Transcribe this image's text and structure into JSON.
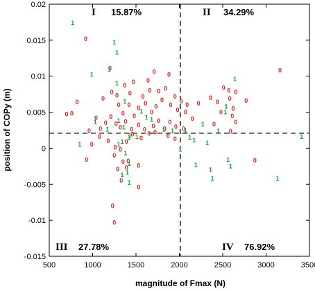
{
  "chart_data": {
    "type": "scatter",
    "xlabel": "magnitude of Fmax (N)",
    "ylabel": "position of COPy (m)",
    "xlim": [
      500,
      3500
    ],
    "ylim": [
      -0.015,
      0.02
    ],
    "x_ticks": [
      "500",
      "1000",
      "1500",
      "2000",
      "2500",
      "3000",
      "3500"
    ],
    "y_ticks": [
      "-0.015",
      "-0.01",
      "-0.005",
      "0",
      "0.005",
      "0.01",
      "0.015",
      "0.02"
    ],
    "grid": false,
    "divider_lines": {
      "x": 2010,
      "y": 0.0021,
      "style": "dashed"
    },
    "quadrants": [
      {
        "roman": "I",
        "percent": "15.87%",
        "position": "top-left"
      },
      {
        "roman": "II",
        "percent": "34.29%",
        "position": "top-right"
      },
      {
        "roman": "III",
        "percent": "27.78%",
        "position": "bottom-left"
      },
      {
        "roman": "IV",
        "percent": "76.92%",
        "position": "bottom-right"
      }
    ],
    "series": [
      {
        "marker": "0",
        "color": "#e02020",
        "points": [
          [
            920,
            0.0152
          ],
          [
            1200,
            0.0111
          ],
          [
            1470,
            0.0092
          ],
          [
            1640,
            0.0094
          ],
          [
            1710,
            0.0106
          ],
          [
            1880,
            0.0102
          ],
          [
            1370,
            0.0087
          ],
          [
            1220,
            0.0078
          ],
          [
            1120,
            0.0069
          ],
          [
            1280,
            0.0073
          ],
          [
            1430,
            0.0076
          ],
          [
            1580,
            0.0072
          ],
          [
            1660,
            0.008
          ],
          [
            1760,
            0.0079
          ],
          [
            1840,
            0.0083
          ],
          [
            1950,
            0.0072
          ],
          [
            2020,
            0.0065
          ],
          [
            2070,
            0.005
          ],
          [
            1300,
            0.006
          ],
          [
            1350,
            0.0048
          ],
          [
            1420,
            0.006
          ],
          [
            1480,
            0.0045
          ],
          [
            1530,
            0.0056
          ],
          [
            1610,
            0.0062
          ],
          [
            1680,
            0.005
          ],
          [
            1730,
            0.0058
          ],
          [
            1800,
            0.0067
          ],
          [
            1900,
            0.006
          ],
          [
            1980,
            0.0053
          ],
          [
            820,
            0.0064
          ],
          [
            700,
            0.0047
          ],
          [
            760,
            0.0048
          ],
          [
            1040,
            0.0042
          ],
          [
            1150,
            0.0035
          ],
          [
            1210,
            0.0044
          ],
          [
            1270,
            0.0034
          ],
          [
            1320,
            0.0029
          ],
          [
            1380,
            0.0037
          ],
          [
            1450,
            0.0026
          ],
          [
            1530,
            0.0032
          ],
          [
            1600,
            0.0026
          ],
          [
            1700,
            0.0031
          ],
          [
            1760,
            0.0038
          ],
          [
            1830,
            0.0027
          ],
          [
            1890,
            0.0036
          ],
          [
            1960,
            0.003
          ],
          [
            2050,
            0.0027
          ],
          [
            960,
            0.0024
          ],
          [
            990,
            0.0005
          ],
          [
            1080,
            0.0016
          ],
          [
            1180,
            0.001
          ],
          [
            1260,
            0.0001
          ],
          [
            1320,
            -0.0002
          ],
          [
            1390,
            0.0009
          ],
          [
            1460,
            0.0019
          ],
          [
            1560,
            0.0014
          ],
          [
            1650,
            0.002
          ],
          [
            1720,
            0.0022
          ],
          [
            1870,
            0.0017
          ],
          [
            1950,
            0.0013
          ],
          [
            1090,
            0.0027
          ],
          [
            930,
            -0.0016
          ],
          [
            1250,
            -0.001
          ],
          [
            1350,
            -0.0019
          ],
          [
            1410,
            -0.0018
          ],
          [
            1390,
            -0.0027
          ],
          [
            1530,
            -0.0024
          ],
          [
            1290,
            -0.0029
          ],
          [
            1330,
            -0.0045
          ],
          [
            1530,
            -0.0054
          ],
          [
            1230,
            -0.008
          ],
          [
            1250,
            -0.0103
          ],
          [
            2220,
            0.0062
          ],
          [
            2090,
            0.006
          ],
          [
            2150,
            0.0041
          ],
          [
            2360,
            0.007
          ],
          [
            2440,
            0.0064
          ],
          [
            2480,
            0.005
          ],
          [
            2510,
            0.0084
          ],
          [
            2570,
            0.008
          ],
          [
            2650,
            0.0078
          ],
          [
            2620,
            0.0055
          ],
          [
            2610,
            0.0045
          ],
          [
            2590,
            0.0023
          ],
          [
            2650,
            0.0036
          ],
          [
            2770,
            0.0066
          ],
          [
            2580,
            0.0069
          ],
          [
            2400,
            0.0033
          ],
          [
            2870,
            -0.0017
          ],
          [
            3160,
            0.0108
          ]
        ]
      },
      {
        "marker": "1",
        "color": "#1a9e3a",
        "points": [
          [
            770,
            0.0174
          ],
          [
            1250,
            0.0147
          ],
          [
            1280,
            0.0133
          ],
          [
            990,
            0.0102
          ],
          [
            1190,
            0.0109
          ],
          [
            1280,
            0.009
          ],
          [
            1370,
            0.0065
          ],
          [
            1030,
            0.0036
          ],
          [
            850,
            0.0005
          ],
          [
            1170,
            0.0026
          ],
          [
            1300,
            0.0038
          ],
          [
            1360,
            0.0029
          ],
          [
            1420,
            0.0015
          ],
          [
            1510,
            0.0016
          ],
          [
            1560,
            0.0051
          ],
          [
            1620,
            0.0043
          ],
          [
            1680,
            0.004
          ],
          [
            1820,
            0.0026
          ],
          [
            1920,
            0.0024
          ],
          [
            1340,
            0.0009
          ],
          [
            1430,
            0.0018
          ],
          [
            1300,
            0.0005
          ],
          [
            1380,
            -0.0007
          ],
          [
            1420,
            -0.0022
          ],
          [
            1400,
            -0.0034
          ],
          [
            1340,
            -0.0037
          ],
          [
            1420,
            -0.0048
          ],
          [
            2070,
            0.0025
          ],
          [
            2120,
            0.0015
          ],
          [
            2170,
            0.0011
          ],
          [
            2010,
            -0.0002
          ],
          [
            2190,
            -0.0023
          ],
          [
            2320,
            0.0007
          ],
          [
            2360,
            -0.003
          ],
          [
            2380,
            -0.0042
          ],
          [
            2450,
            0.0024
          ],
          [
            2530,
            0.005
          ],
          [
            2560,
            -0.0016
          ],
          [
            2590,
            -0.0025
          ],
          [
            2640,
            0.0096
          ],
          [
            3130,
            -0.0042
          ],
          [
            3410,
            0.0016
          ],
          [
            2540,
            0.0058
          ],
          [
            2270,
            0.0033
          ]
        ]
      }
    ]
  }
}
